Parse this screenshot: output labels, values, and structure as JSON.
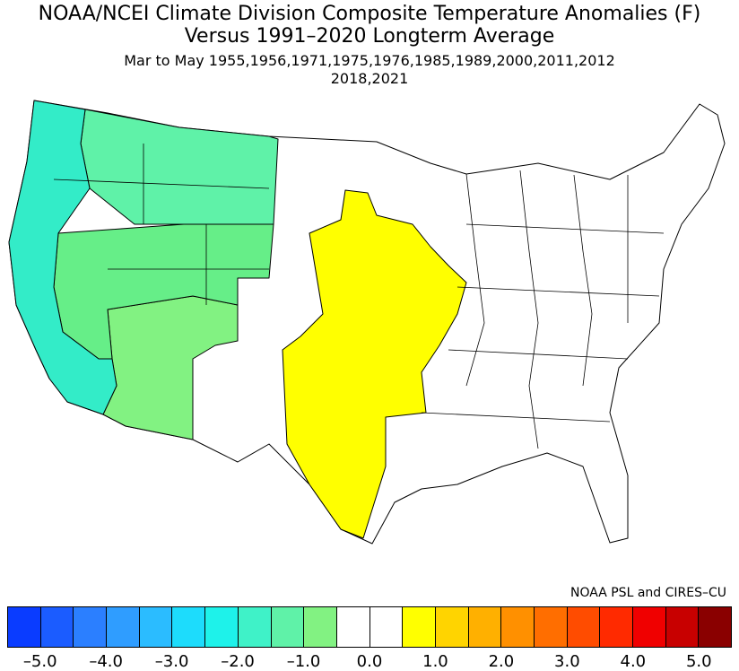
{
  "title": {
    "line1": "NOAA/NCEI Climate Division Composite Temperature Anomalies (F)",
    "line2": "Versus 1991–2020 Longterm Average",
    "line3": "Mar to May  1955,1956,1971,1975,1976,1985,1989,2000,2011,2012",
    "line4": "2018,2021"
  },
  "credit": "NOAA PSL and CIRES–CU",
  "colorbar": {
    "colors": [
      "#0a3cff",
      "#1b5cff",
      "#2b7fff",
      "#2f9dff",
      "#2bbcff",
      "#1ddcfc",
      "#1ef2ea",
      "#3ff2c8",
      "#5ff2a8",
      "#82f282",
      "#ffffff",
      "#ffffff",
      "#ffff00",
      "#ffd400",
      "#ffb000",
      "#ff9000",
      "#ff6e00",
      "#ff4c00",
      "#ff2a00",
      "#f00000",
      "#c80000",
      "#8a0000"
    ],
    "ticks": [
      "–5.0",
      "–4.0",
      "–3.0",
      "–2.0",
      "–1.0",
      "0.0",
      "1.0",
      "2.0",
      "3.0",
      "4.0",
      "5.0"
    ]
  },
  "regions": [
    {
      "name": "west-coast",
      "color": "#33ecc8",
      "anomaly": -2.0
    },
    {
      "name": "northern-rockies",
      "color": "#5ff2a8",
      "anomaly": -1.5
    },
    {
      "name": "interior-west",
      "color": "#66ee88",
      "anomaly": -1.5
    },
    {
      "name": "southwest",
      "color": "#82f282",
      "anomaly": -1.0
    },
    {
      "name": "plains",
      "color": "#ffff00",
      "anomaly": 1.0
    },
    {
      "name": "east",
      "color": "#ffffff",
      "anomaly": 0.0
    }
  ]
}
